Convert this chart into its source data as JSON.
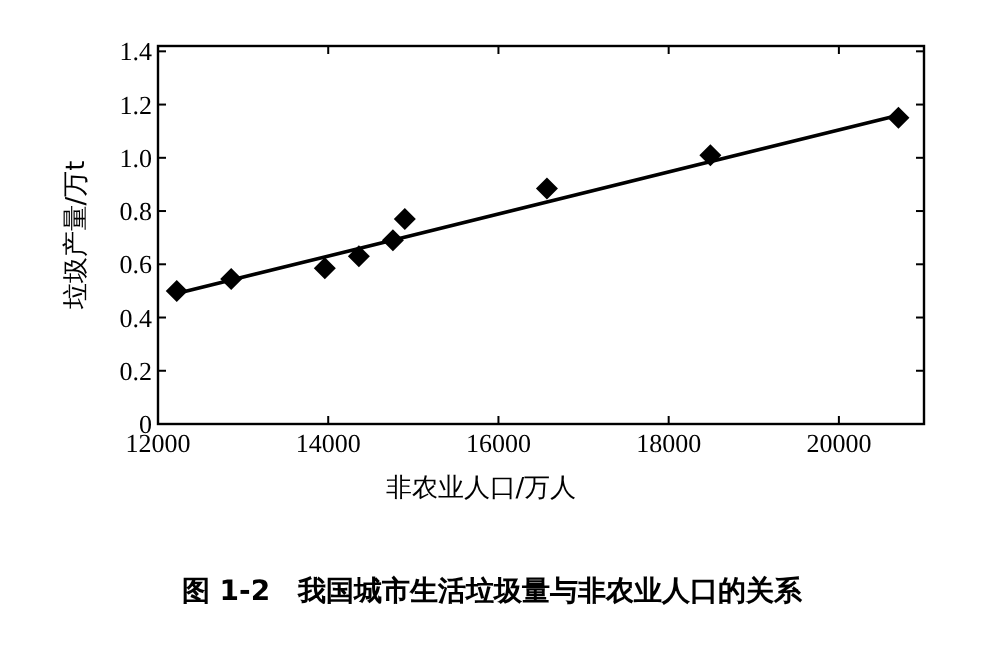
{
  "chart_data": {
    "type": "scatter",
    "title": "图 1-2　我国城市生活垃圾量与非农业人口的关系",
    "xlabel": "非农业人口/万人",
    "ylabel": "垃圾产量/万t",
    "xlim": [
      12000,
      21000
    ],
    "xticks": [
      12000,
      14000,
      16000,
      18000,
      20000
    ],
    "ylim": [
      0,
      1.42
    ],
    "yticks": [
      {
        "value": 0,
        "label": "0"
      },
      {
        "value": 0.2,
        "label": "0.2"
      },
      {
        "value": 0.4,
        "label": "0.4"
      },
      {
        "value": 0.6,
        "label": "0.6"
      },
      {
        "value": 0.8,
        "label": "0.8"
      },
      {
        "value": 1.0,
        "label": "1.0"
      },
      {
        "value": 1.2,
        "label": "1.2"
      },
      {
        "value": 1.4,
        "label": "1.4"
      }
    ],
    "grid": false,
    "series": [
      {
        "marker": "diamond",
        "color": "#000000",
        "x": [
          12220,
          12860,
          13960,
          14360,
          14760,
          14900,
          16570,
          18490,
          20700
        ],
        "values": [
          0.5,
          0.545,
          0.585,
          0.63,
          0.69,
          0.77,
          0.885,
          1.01,
          1.15
        ]
      },
      {
        "type": "line",
        "color": "#000000",
        "line_style": "solid",
        "x": [
          12220,
          20700
        ],
        "values": [
          0.49,
          1.16
        ]
      }
    ]
  }
}
